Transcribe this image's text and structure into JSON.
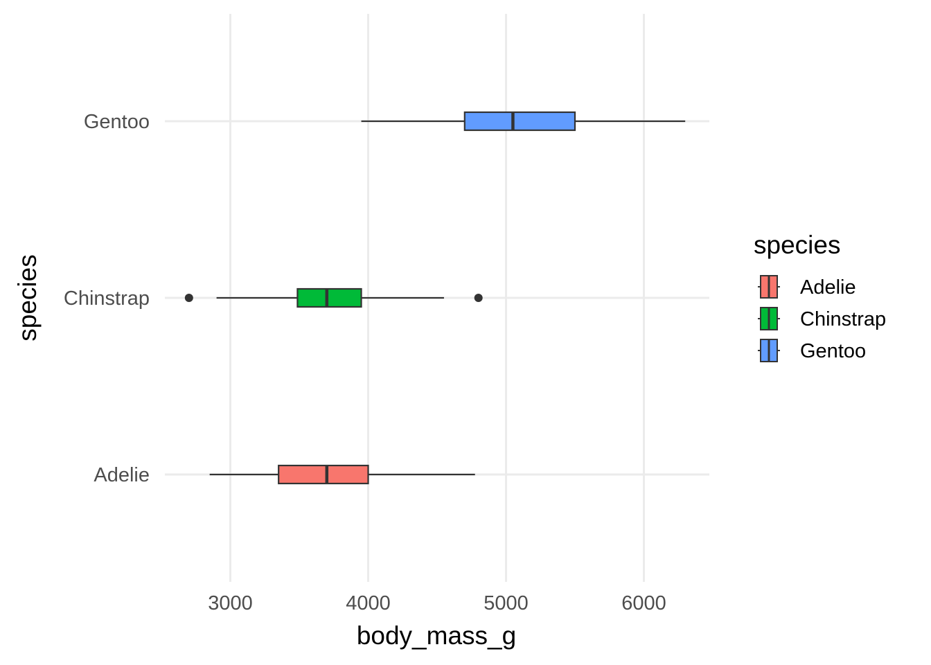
{
  "chart_data": {
    "type": "boxplot",
    "orientation": "horizontal",
    "xlabel": "body_mass_g",
    "ylabel": "species",
    "xlim": [
      2525,
      6475
    ],
    "x_ticks": [
      3000,
      4000,
      5000,
      6000
    ],
    "grid": true,
    "legend": {
      "title": "species",
      "placement": "right"
    },
    "categories": [
      "Adelie",
      "Chinstrap",
      "Gentoo"
    ],
    "series": [
      {
        "name": "Adelie",
        "color": "#F8766D",
        "whisker_low": 2850,
        "q1": 3350,
        "median": 3700,
        "q3": 4000,
        "whisker_high": 4775,
        "outliers": []
      },
      {
        "name": "Chinstrap",
        "color": "#00BA38",
        "whisker_low": 2900,
        "q1": 3487,
        "median": 3700,
        "q3": 3950,
        "whisker_high": 4550,
        "outliers": [
          2700,
          4800
        ]
      },
      {
        "name": "Gentoo",
        "color": "#619CFF",
        "whisker_low": 3950,
        "q1": 4700,
        "median": 5050,
        "q3": 5500,
        "whisker_high": 6300,
        "outliers": []
      }
    ]
  }
}
